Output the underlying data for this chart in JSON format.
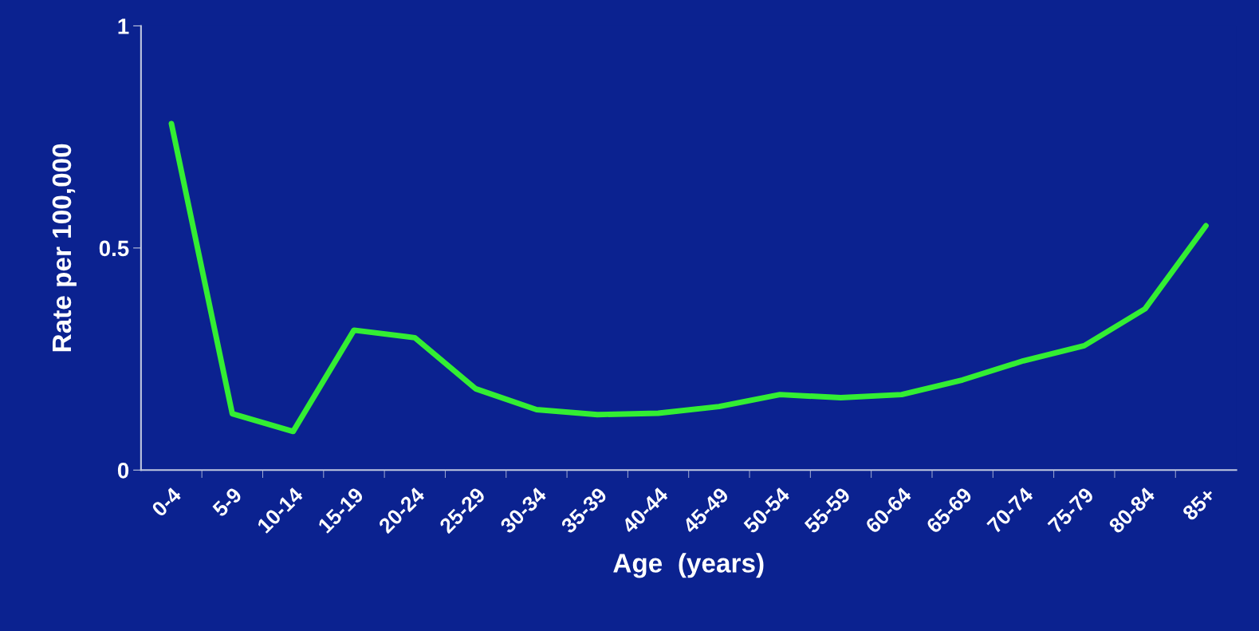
{
  "chart_data": {
    "type": "line",
    "xlabel": "Age  (years)",
    "ylabel": "Rate per 100,000",
    "categories": [
      "0-4",
      "5-9",
      "10-14",
      "15-19",
      "20-24",
      "25-29",
      "30-34",
      "35-39",
      "40-44",
      "45-49",
      "50-54",
      "55-59",
      "60-64",
      "65-69",
      "70-74",
      "75-79",
      "80-84",
      "85+"
    ],
    "series": [
      {
        "color": "#33ee33",
        "values": [
          0.78,
          0.127,
          0.087,
          0.315,
          0.298,
          0.183,
          0.136,
          0.125,
          0.128,
          0.143,
          0.17,
          0.163,
          0.17,
          0.203,
          0.246,
          0.28,
          0.363,
          0.55
        ]
      }
    ],
    "ylim": [
      0,
      1
    ],
    "yticks": [
      0,
      0.5,
      1
    ],
    "grid": false,
    "marker": "none",
    "line_style": "solid"
  }
}
